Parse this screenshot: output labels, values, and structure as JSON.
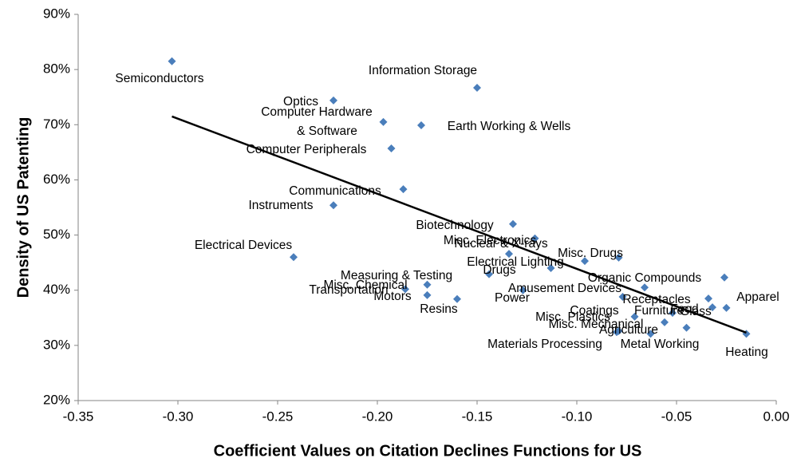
{
  "chart_data": {
    "type": "scatter",
    "x_label": "Coefficient Values on Citation Declines Functions for US",
    "y_label": "Density of US Patenting",
    "labels": [
      "Semiconductors",
      "Information Storage",
      "Optics",
      [
        "Computer Hardware",
        "& Software"
      ],
      "Earth Working & Wells",
      "Computer Peripherals",
      "Communications",
      "Instruments",
      "Biotechnology",
      "Electrical Devices",
      "Misc. Electronics",
      "Nuclear & X-rays",
      "Misc. Drugs",
      "Electrical Lighting",
      "Drugs",
      "Measuring & Testing",
      "Organic Compounds",
      "Misc. Chemical",
      "Transportation",
      "Amusement Devices",
      "Power",
      "Motors",
      "Resins",
      "Receptacles",
      "Apparel",
      "Food",
      "Glass",
      "Furniture",
      "Coatings",
      "Misc. Plastics",
      "Misc. Mechanical",
      "Agriculture",
      "Metal Working",
      "Materials Processing",
      "Heating"
    ],
    "x": [
      -0.303,
      -0.15,
      -0.222,
      -0.197,
      -0.178,
      -0.193,
      -0.187,
      -0.222,
      -0.132,
      -0.242,
      -0.121,
      -0.134,
      -0.079,
      -0.096,
      -0.113,
      -0.144,
      -0.026,
      -0.175,
      -0.186,
      -0.066,
      -0.127,
      -0.175,
      -0.16,
      -0.077,
      -0.025,
      -0.034,
      -0.032,
      -0.052,
      -0.071,
      -0.056,
      -0.079,
      -0.063,
      -0.045,
      -0.08,
      -0.015
    ],
    "y": [
      81.5,
      76.7,
      74.4,
      70.5,
      69.9,
      65.7,
      58.3,
      55.4,
      52.0,
      46.0,
      49.4,
      46.6,
      45.9,
      45.3,
      44.0,
      42.9,
      42.3,
      41.0,
      40.2,
      40.5,
      40.0,
      39.1,
      38.4,
      38.8,
      36.8,
      38.5,
      36.9,
      35.9,
      35.2,
      34.2,
      32.6,
      32.1,
      33.2,
      32.4,
      32.1
    ],
    "color": "#4a7ebb",
    "trendline": {
      "x": [
        -0.303,
        -0.015
      ],
      "y": [
        71.5,
        32.3
      ],
      "color": "#000000"
    },
    "xlim": [
      -0.35,
      0.0
    ],
    "ylim": [
      20,
      90
    ],
    "xticks": [
      {
        "value": -0.35,
        "label": "-0.35"
      },
      {
        "value": -0.3,
        "label": "-0.30"
      },
      {
        "value": -0.25,
        "label": "-0.25"
      },
      {
        "value": -0.2,
        "label": "-0.20"
      },
      {
        "value": -0.15,
        "label": "-0.15"
      },
      {
        "value": -0.1,
        "label": "-0.10"
      },
      {
        "value": -0.05,
        "label": "-0.05"
      },
      {
        "value": 0.0,
        "label": "0.00"
      }
    ],
    "yticks": [
      {
        "value": 20,
        "label": "20%"
      },
      {
        "value": 30,
        "label": "30%"
      },
      {
        "value": 40,
        "label": "40%"
      },
      {
        "value": 50,
        "label": "50%"
      },
      {
        "value": 60,
        "label": "60%"
      },
      {
        "value": 70,
        "label": "70%"
      },
      {
        "value": 80,
        "label": "80%"
      },
      {
        "value": 90,
        "label": "90%"
      }
    ]
  }
}
